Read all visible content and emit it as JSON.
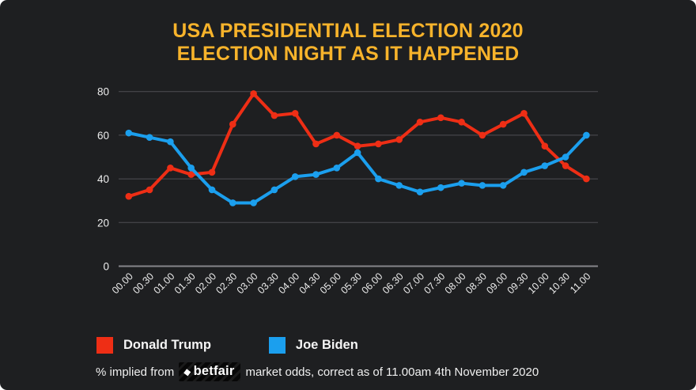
{
  "title": {
    "line1": "USA PRESIDENTIAL ELECTION 2020",
    "line2": "ELECTION NIGHT AS IT HAPPENED"
  },
  "chart_data": {
    "type": "line",
    "title": "USA Presidential Election 2020 - Election Night as it happened",
    "categories": [
      "00.00",
      "00.30",
      "01.00",
      "01.30",
      "02.00",
      "02.30",
      "03.00",
      "03.30",
      "04.00",
      "04.30",
      "05.00",
      "05.30",
      "06.00",
      "06.30",
      "07.00",
      "07.30",
      "08.00",
      "08.30",
      "09.00",
      "09.30",
      "10.00",
      "10.30",
      "11.00"
    ],
    "series": [
      {
        "name": "Donald Trump",
        "color": "#ee2e15",
        "values": [
          32,
          35,
          45,
          42,
          43,
          65,
          79,
          69,
          70,
          56,
          60,
          55,
          56,
          58,
          66,
          68,
          66,
          60,
          65,
          70,
          55,
          46,
          40
        ]
      },
      {
        "name": "Joe Biden",
        "color": "#1b9fee",
        "values": [
          61,
          59,
          57,
          45,
          35,
          29,
          29,
          35,
          41,
          42,
          45,
          52,
          40,
          37,
          34,
          36,
          38,
          37,
          37,
          43,
          46,
          50,
          60
        ]
      }
    ],
    "xlabel": "",
    "ylabel": "",
    "ylim": [
      0,
      80
    ],
    "yticks": [
      0,
      20,
      40,
      60,
      80
    ],
    "grid": "horizontal",
    "legend_position": "bottom-left"
  },
  "legend": {
    "items": [
      {
        "label": "Donald Trump",
        "color": "#ee2e15"
      },
      {
        "label": "Joe Biden",
        "color": "#1b9fee"
      }
    ]
  },
  "footer": {
    "prefix": "% implied from",
    "brand": "betfair",
    "suffix": "market odds, correct as of 11.00am 4th November 2020"
  },
  "icons": {
    "betfair_mark": "◆"
  },
  "colors": {
    "background": "#1e1f21",
    "title": "#f7b32b",
    "grid": "#4e4f53",
    "axis": "#85868a",
    "tick_text": "#ececec",
    "trump": "#ee2e15",
    "biden": "#1b9fee"
  }
}
